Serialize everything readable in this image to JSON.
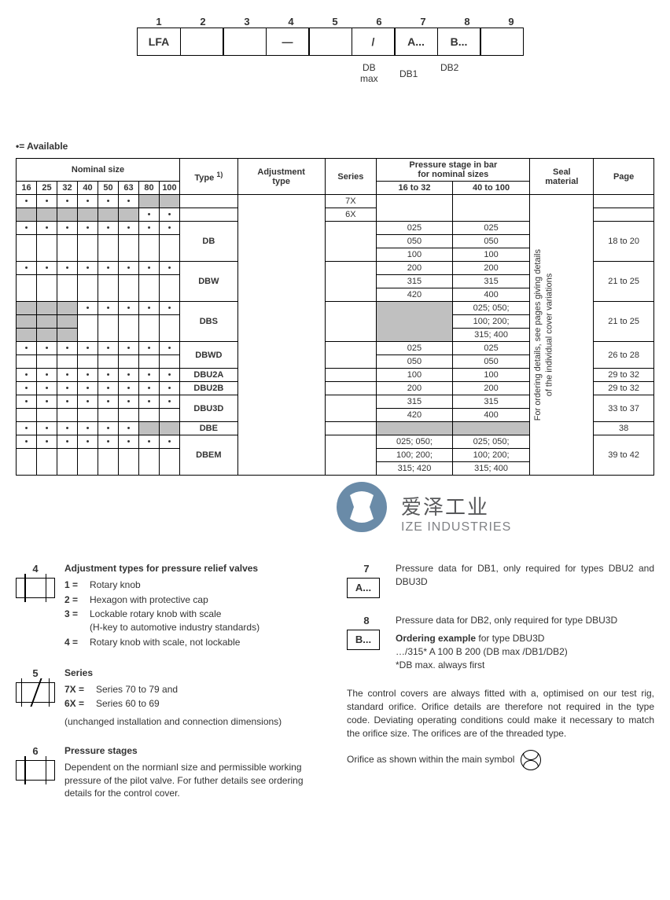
{
  "code_header": {
    "positions": [
      "1",
      "2",
      "3",
      "4",
      "5",
      "6",
      "7",
      "8",
      "9"
    ],
    "boxes": [
      "LFA",
      "",
      "",
      "—",
      "",
      "/",
      "A...",
      "B...",
      ""
    ],
    "sub_labels": {
      "db_max": "DB\nmax",
      "db1": "DB1",
      "db2": "DB2"
    }
  },
  "available_note": "•= Available",
  "table": {
    "headers": {
      "nominal_size": "Nominal size",
      "type": "Type",
      "type_sup": "1)",
      "adjustment": "Adjustment\ntype",
      "series": "Series",
      "pressure": "Pressure stage in bar\nfor nominal sizes",
      "pressure_sub1": "16 to 32",
      "pressure_sub2": "40 to 100",
      "seal": "Seal\nmaterial",
      "page": "Page"
    },
    "sizes": [
      "16",
      "25",
      "32",
      "40",
      "50",
      "63",
      "80",
      "100"
    ],
    "series_7x": "7X",
    "series_6x": "6X",
    "rows": [
      {
        "type": "DB",
        "sizes": [
          1,
          1,
          1,
          1,
          1,
          1,
          1,
          1
        ],
        "p1": [
          "025",
          "050",
          "100"
        ],
        "p2": [
          "025",
          "050",
          "100"
        ],
        "page": "18 to 20"
      },
      {
        "type": "DBW",
        "sizes": [
          1,
          1,
          1,
          1,
          1,
          1,
          1,
          1
        ],
        "p1": [
          "200",
          "315",
          "420"
        ],
        "p2": [
          "200",
          "315",
          "400"
        ],
        "page": "21 to 25"
      },
      {
        "type": "DBS",
        "sizes": [
          0,
          0,
          0,
          1,
          1,
          1,
          1,
          1
        ],
        "grey_sizes": [
          1,
          1,
          1,
          0,
          0,
          0,
          0,
          0
        ],
        "p1_grey": true,
        "p2": [
          "025; 050;",
          "100; 200;",
          "315; 400"
        ],
        "page": "21 to 25"
      },
      {
        "type": "DBWD",
        "sizes": [
          1,
          1,
          1,
          1,
          1,
          1,
          1,
          1
        ],
        "p1": [
          "025",
          "050"
        ],
        "p2": [
          "025",
          "050"
        ],
        "page": "26 to 28"
      },
      {
        "type": "DBU2A",
        "sizes": [
          1,
          1,
          1,
          1,
          1,
          1,
          1,
          1
        ],
        "p1": [
          "100"
        ],
        "p2": [
          "100"
        ],
        "page": "29 to 32"
      },
      {
        "type": "DBU2B",
        "sizes": [
          1,
          1,
          1,
          1,
          1,
          1,
          1,
          1
        ],
        "p1": [
          "200"
        ],
        "p2": [
          "200"
        ],
        "page": "29 to 32"
      },
      {
        "type": "DBU3D",
        "sizes": [
          1,
          1,
          1,
          1,
          1,
          1,
          1,
          1
        ],
        "p1": [
          "315",
          "420"
        ],
        "p2": [
          "315",
          "400"
        ],
        "page": "33 to 37"
      },
      {
        "type": "DBE",
        "sizes": [
          1,
          1,
          1,
          1,
          1,
          1,
          0,
          0
        ],
        "grey_last": true,
        "p1_grey": true,
        "p2_grey": true,
        "page": "38"
      },
      {
        "type": "DBEM",
        "sizes": [
          1,
          1,
          1,
          1,
          1,
          1,
          1,
          1
        ],
        "p1": [
          "025; 050;",
          "100; 200;",
          "315; 420"
        ],
        "p2": [
          "025; 050;",
          "100; 200;",
          "315; 400"
        ],
        "page": "39 to 42"
      }
    ],
    "seal_text": "For ordering details, see pages giving details\nof the individual cover variations"
  },
  "logo": {
    "cn": "爱泽工业",
    "en": "IZE INDUSTRIES",
    "circle_color": "#6a8ba8"
  },
  "footer": {
    "sec4": {
      "num": "4",
      "title": "Adjustment types for pressure relief valves",
      "items": [
        {
          "k": "1 =",
          "v": "Rotary knob"
        },
        {
          "k": "2 =",
          "v": "Hexagon with protective cap"
        },
        {
          "k": "3 =",
          "v": "Lockable rotary knob with scale\n(H-key to automotive industry standards)"
        },
        {
          "k": "4 =",
          "v": "Rotary knob with scale, not lockable"
        }
      ]
    },
    "sec5": {
      "num": "5",
      "title": "Series",
      "items": [
        {
          "k": "7X =",
          "v": "Series 70 to 79 and"
        },
        {
          "k": "6X =",
          "v": "Series 60 to 69"
        }
      ],
      "note": "(unchanged installation and connection dimensions)"
    },
    "sec6": {
      "num": "6",
      "title": "Pressure stages",
      "text": "Dependent on the normianl size and permissible working pressure of the pilot valve. For futher details see ordering details for the control cover."
    },
    "sec7": {
      "num": "7",
      "box": "A...",
      "text": "Pressure data for DB1, only required for types DBU2     and DBU3D"
    },
    "sec8": {
      "num": "8",
      "box": "B...",
      "text": "Pressure data for DB2, only required for type DBU3D",
      "example_title": "Ordering example",
      "example_sub": " for type DBU3D",
      "example_code": "…/315* A 100 B 200 (DB max /DB1/DB2)",
      "example_note": "*DB max. always first"
    },
    "para": "The control covers are always fitted with a, optimised on our test rig, standard orifice. Orifice details are therefore not required in the type code.  Deviating operating conditions could make it necessary to match the orifice size. The orifices are of the threaded type.",
    "orifice": "Orifice as shown within the main symbol"
  }
}
